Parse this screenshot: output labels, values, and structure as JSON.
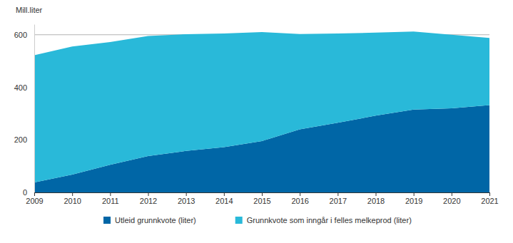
{
  "chart_data": {
    "type": "area",
    "stacked": true,
    "y_label": "Mill.liter",
    "x": [
      2009,
      2010,
      2011,
      2012,
      2013,
      2014,
      2015,
      2016,
      2017,
      2018,
      2019,
      2020,
      2021
    ],
    "xlim": [
      2009,
      2021
    ],
    "xticks": [
      2009,
      2010,
      2011,
      2012,
      2013,
      2014,
      2015,
      2016,
      2017,
      2018,
      2019,
      2020,
      2021
    ],
    "ylim": [
      0,
      640
    ],
    "yticks": [
      0,
      200,
      400,
      600
    ],
    "grid": true,
    "legend": "bottom",
    "series": [
      {
        "name": "Utleid grunnkvote (liter)",
        "color": "#0066a6",
        "values": [
          38,
          68,
          105,
          138,
          158,
          172,
          195,
          240,
          265,
          292,
          315,
          320,
          332
        ]
      },
      {
        "name": "Grunnkvote som inngår i felles melkeprod (liter)",
        "color": "#29b9d9",
        "values": [
          484,
          487,
          467,
          457,
          444,
          433,
          415,
          363,
          340,
          316,
          297,
          280,
          256
        ]
      }
    ]
  }
}
